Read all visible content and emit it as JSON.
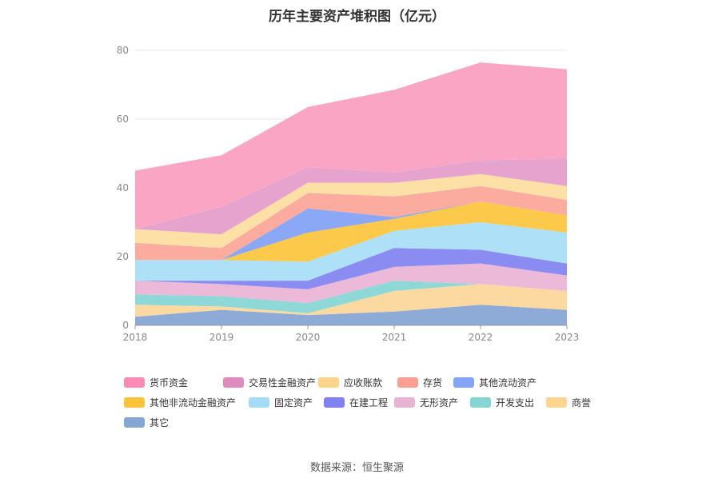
{
  "title": "历年主要资产堆积图（亿元）",
  "source": "数据来源：恒生聚源",
  "chart_data": {
    "type": "area",
    "stacked": true,
    "categories": [
      "2018",
      "2019",
      "2020",
      "2021",
      "2022",
      "2023"
    ],
    "ylim": [
      0,
      80
    ],
    "yticks": [
      0,
      20,
      40,
      60,
      80
    ],
    "grid": true,
    "legend_position": "bottom",
    "series": [
      {
        "name": "其它",
        "color": "#8eabd8",
        "values": [
          2.5,
          4.5,
          3.0,
          4.0,
          6.0,
          4.5
        ]
      },
      {
        "name": "商誉",
        "color": "#fcd9a0",
        "values": [
          3.5,
          1.0,
          0.5,
          6.0,
          6.0,
          5.5
        ]
      },
      {
        "name": "开发支出",
        "color": "#8ed8d8",
        "values": [
          3.0,
          3.0,
          3.0,
          3.0,
          0.0,
          0.0
        ]
      },
      {
        "name": "无形资产",
        "color": "#ecbad8",
        "values": [
          4.0,
          3.5,
          4.0,
          4.0,
          6.0,
          4.5
        ]
      },
      {
        "name": "在建工程",
        "color": "#8a8cf2",
        "values": [
          0.0,
          1.0,
          2.5,
          5.5,
          4.0,
          3.5
        ]
      },
      {
        "name": "固定资产",
        "color": "#aee0f8",
        "values": [
          6.0,
          6.0,
          5.5,
          5.0,
          8.0,
          9.0
        ]
      },
      {
        "name": "其他非流动金融资产",
        "color": "#fdc94a",
        "values": [
          0.0,
          0.0,
          8.5,
          3.5,
          6.0,
          5.0
        ]
      },
      {
        "name": "其他流动资产",
        "color": "#8aa8f5",
        "values": [
          0.0,
          0.0,
          7.0,
          0.5,
          0.0,
          0.0
        ]
      },
      {
        "name": "存货",
        "color": "#fcab9f",
        "values": [
          5.0,
          3.5,
          4.5,
          6.0,
          4.5,
          4.5
        ]
      },
      {
        "name": "应收账款",
        "color": "#fde0a6",
        "values": [
          4.0,
          4.0,
          3.0,
          4.0,
          3.5,
          4.0
        ]
      },
      {
        "name": "交易性金融资产",
        "color": "#e5a3cd",
        "values": [
          0.0,
          8.0,
          4.5,
          3.0,
          4.0,
          8.0
        ]
      },
      {
        "name": "货币资金",
        "color": "#fba5c5",
        "values": [
          17.0,
          15.0,
          17.5,
          24.0,
          28.5,
          26.0
        ]
      }
    ]
  },
  "legend": [
    {
      "name": "货币资金",
      "color": "#f98bb4"
    },
    {
      "name": "交易性金融资产",
      "color": "#de8bc0"
    },
    {
      "name": "应收账款",
      "color": "#fdd48c"
    },
    {
      "name": "存货",
      "color": "#fb9f93"
    },
    {
      "name": "其他流动资产",
      "color": "#84a4f4"
    },
    {
      "name": "其他非流动金融资产",
      "color": "#fdc43c"
    },
    {
      "name": "固定资产",
      "color": "#a4dcf8"
    },
    {
      "name": "在建工程",
      "color": "#7f82f0"
    },
    {
      "name": "无形资产",
      "color": "#e9b4d4"
    },
    {
      "name": "开发支出",
      "color": "#85d5d5"
    },
    {
      "name": "商誉",
      "color": "#fdd590"
    },
    {
      "name": "其它",
      "color": "#86a6d4"
    }
  ]
}
